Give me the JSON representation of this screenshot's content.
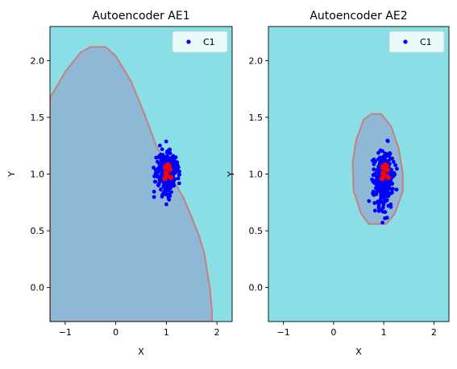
{
  "colors": {
    "background": "#8adfe6",
    "region": "#8fb7d6",
    "boundary": "#c87f7f",
    "points": "#0000ff",
    "highlight": "#ff0000"
  },
  "chart_data": [
    {
      "type": "scatter",
      "title": "Autoencoder AE1",
      "xlabel": "X",
      "ylabel": "Y",
      "xlim": [
        -1.3,
        2.3
      ],
      "ylim": [
        -0.3,
        2.3
      ],
      "xticks": [
        -1,
        0,
        1,
        2
      ],
      "yticks": [
        0.0,
        0.5,
        1.0,
        1.5,
        2.0
      ],
      "xtick_labels": [
        "−1",
        "0",
        "1",
        "2"
      ],
      "ytick_labels": [
        "0.0",
        "0.5",
        "1.0",
        "1.5",
        "2.0"
      ],
      "legend": {
        "entries": [
          "C1"
        ],
        "position": "top-right"
      },
      "series": [
        {
          "name": "C1",
          "color": "#0000ff",
          "center": [
            1.0,
            1.0
          ],
          "spread": [
            0.1,
            0.1
          ],
          "count": 300
        }
      ],
      "highlight_points": [
        [
          1.03,
          1.08
        ],
        [
          0.98,
          1.06
        ],
        [
          1.07,
          1.04
        ],
        [
          1.01,
          0.99
        ],
        [
          0.99,
          1.01
        ],
        [
          1.09,
          0.97
        ],
        [
          0.97,
          0.96
        ],
        [
          1.05,
          1.07
        ]
      ],
      "boundary": [
        [
          -1.3,
          1.67
        ],
        [
          -1.0,
          1.9
        ],
        [
          -0.7,
          2.07
        ],
        [
          -0.5,
          2.12
        ],
        [
          -0.2,
          2.12
        ],
        [
          0.0,
          2.04
        ],
        [
          0.3,
          1.82
        ],
        [
          0.55,
          1.55
        ],
        [
          0.8,
          1.25
        ],
        [
          1.0,
          1.1
        ],
        [
          1.2,
          0.9
        ],
        [
          1.35,
          0.78
        ],
        [
          1.5,
          0.62
        ],
        [
          1.65,
          0.45
        ],
        [
          1.75,
          0.3
        ],
        [
          1.82,
          0.1
        ],
        [
          1.86,
          0.0
        ],
        [
          1.9,
          -0.2
        ],
        [
          1.9,
          -0.3
        ],
        [
          -1.3,
          -0.3
        ]
      ]
    },
    {
      "type": "scatter",
      "title": "Autoencoder AE2",
      "xlabel": "X",
      "ylabel": "Y",
      "xlim": [
        -1.3,
        2.3
      ],
      "ylim": [
        -0.3,
        2.3
      ],
      "xticks": [
        -1,
        0,
        1,
        2
      ],
      "yticks": [
        0.0,
        0.5,
        1.0,
        1.5,
        2.0
      ],
      "xtick_labels": [
        "−1",
        "0",
        "1",
        "2"
      ],
      "ytick_labels": [
        "0.0",
        "0.5",
        "1.0",
        "1.5",
        "2.0"
      ],
      "legend": {
        "entries": [
          "C1"
        ],
        "position": "top-right"
      },
      "series": [
        {
          "name": "C1",
          "color": "#0000ff",
          "center": [
            1.0,
            0.97
          ],
          "spread": [
            0.1,
            0.12
          ],
          "count": 300
        }
      ],
      "highlight_points": [
        [
          1.03,
          1.08
        ],
        [
          0.98,
          1.06
        ],
        [
          1.07,
          1.04
        ],
        [
          1.01,
          0.99
        ],
        [
          0.99,
          1.01
        ],
        [
          1.09,
          0.97
        ],
        [
          0.97,
          0.96
        ],
        [
          1.05,
          1.07
        ]
      ],
      "boundary": [
        [
          0.75,
          1.53
        ],
        [
          0.95,
          1.53
        ],
        [
          1.15,
          1.42
        ],
        [
          1.3,
          1.22
        ],
        [
          1.38,
          1.0
        ],
        [
          1.38,
          0.85
        ],
        [
          1.22,
          0.65
        ],
        [
          1.05,
          0.56
        ],
        [
          0.7,
          0.56
        ],
        [
          0.55,
          0.65
        ],
        [
          0.4,
          0.85
        ],
        [
          0.38,
          1.1
        ],
        [
          0.45,
          1.3
        ],
        [
          0.6,
          1.48
        ]
      ]
    }
  ]
}
